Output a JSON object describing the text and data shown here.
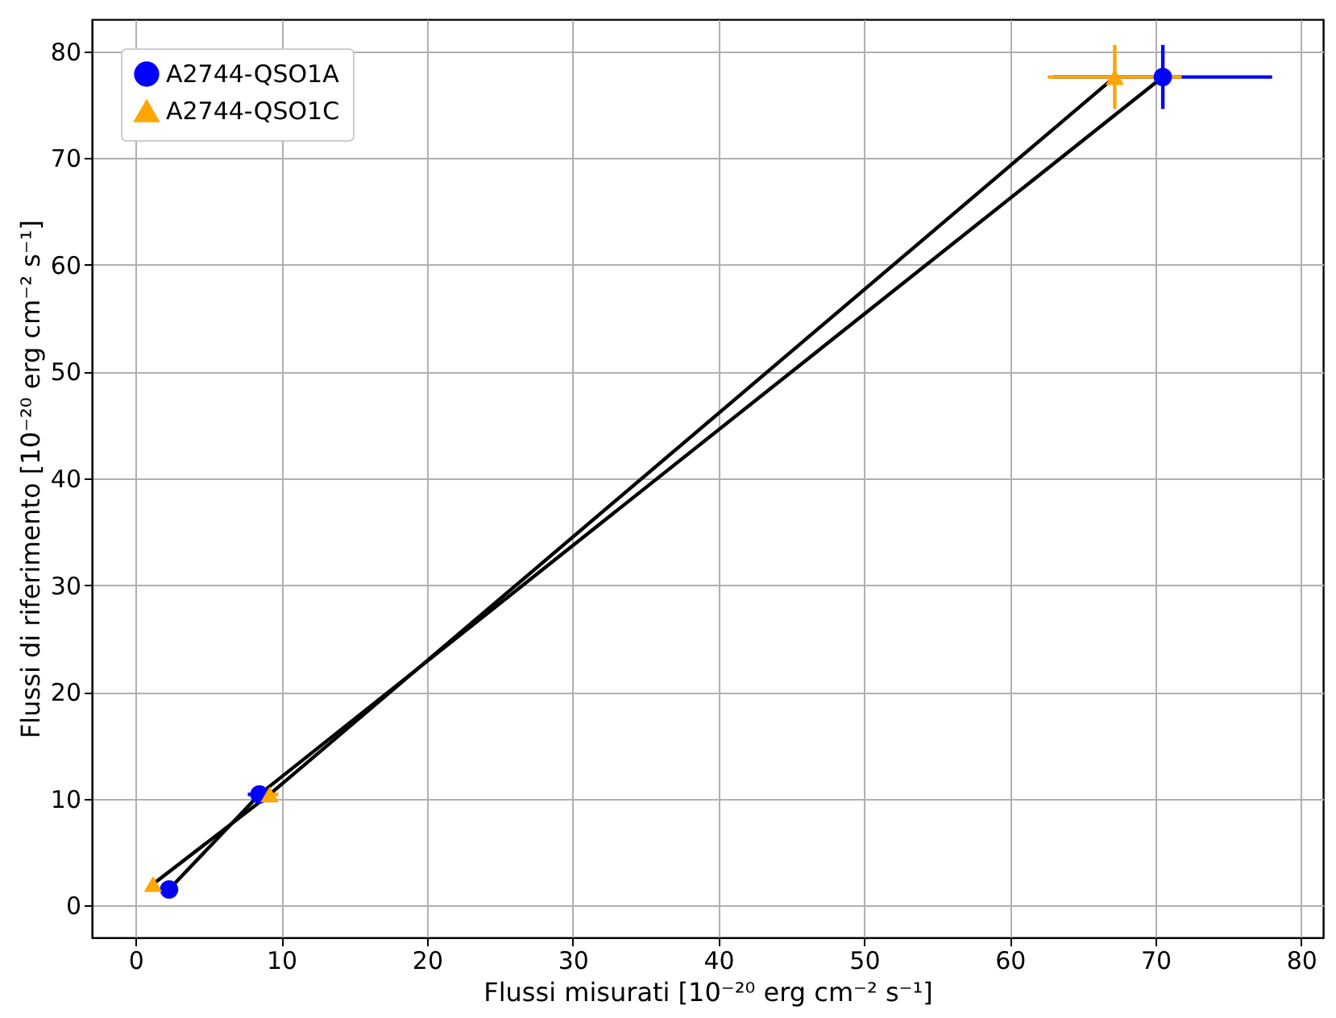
{
  "chart_data": {
    "type": "scatter",
    "xlabel": "Flussi misurati [10⁻²⁰ erg cm⁻² s⁻¹]",
    "ylabel": "Flussi di riferimento [10⁻²⁰ erg cm⁻² s⁻¹]",
    "xlim": [
      -3,
      81.5
    ],
    "ylim": [
      -3,
      83
    ],
    "xticks": [
      0,
      10,
      20,
      30,
      40,
      50,
      60,
      70,
      80
    ],
    "yticks": [
      0,
      10,
      20,
      30,
      40,
      50,
      60,
      70,
      80
    ],
    "grid": true,
    "legend": "top left",
    "series": [
      {
        "type": "line",
        "color": "#000000",
        "x": [
          2.3,
          8.5,
          70.5
        ],
        "values": [
          1.5,
          10.4,
          77.6
        ]
      },
      {
        "type": "line",
        "color": "#000000",
        "x": [
          1.2,
          9.2,
          67.2
        ],
        "values": [
          2.0,
          10.4,
          77.6
        ]
      },
      {
        "name": "A2744-QSO1A",
        "color": "#0000ff",
        "marker": "circle",
        "x": [
          2.3,
          8.5,
          70.5
        ],
        "values": [
          1.5,
          10.4,
          77.6
        ],
        "errors": [
          null,
          null,
          3
        ],
        "xerrors": [
          null,
          0.8,
          7.5
        ]
      },
      {
        "name": "A2744-QSO1C",
        "color": "#ffa500",
        "marker": "triangle",
        "x": [
          1.2,
          9.2,
          67.2
        ],
        "values": [
          2.0,
          10.4,
          77.6
        ],
        "errors": [
          null,
          null,
          3
        ],
        "xerrors": [
          null,
          0.6,
          4.6
        ]
      }
    ]
  }
}
